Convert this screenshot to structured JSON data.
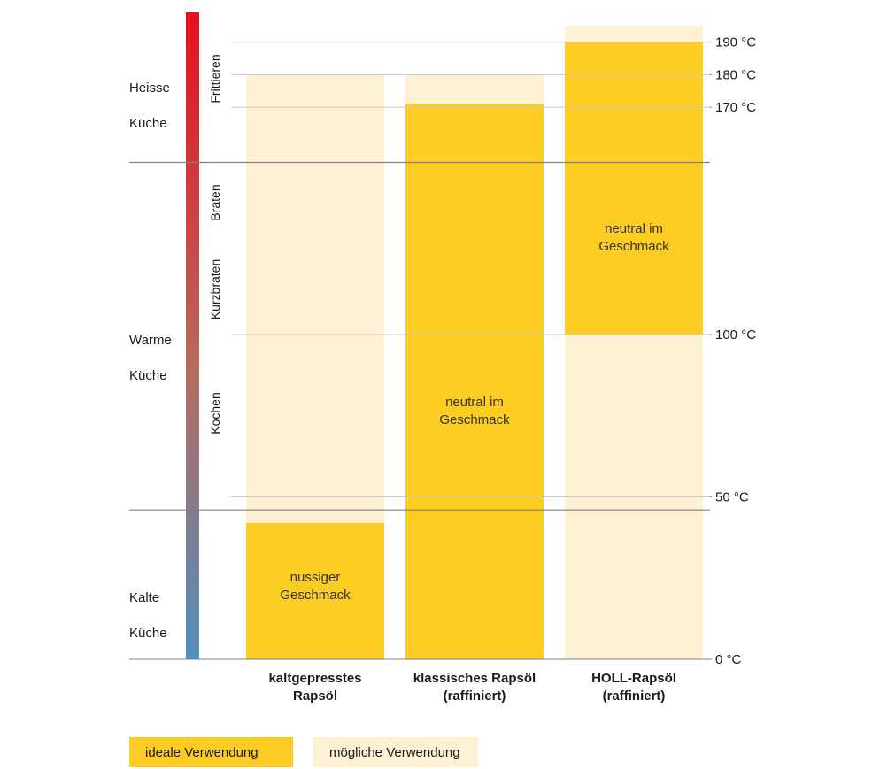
{
  "colors": {
    "ideal": "#fccc22",
    "possible": "#fef1d3",
    "gradient_top": "#e4101d",
    "gradient_bottom": "#4f8fbf",
    "grid": "#c8c8c8",
    "zone_divider": "#808080"
  },
  "zones": [
    {
      "lines": [
        "Heisse",
        "Küche"
      ]
    },
    {
      "lines": [
        "Warme",
        "Küche"
      ]
    },
    {
      "lines": [
        "Kalte",
        "Küche"
      ]
    }
  ],
  "methods": [
    "Frittieren",
    "Braten",
    "Kurzbraten",
    "Kochen"
  ],
  "chart_data": {
    "type": "bar",
    "y_unit": "°C",
    "ylim": [
      0,
      190
    ],
    "y_ticks": [
      {
        "value": 190,
        "label": "190 °C"
      },
      {
        "value": 180,
        "label": "180 °C"
      },
      {
        "value": 170,
        "label": "170 °C"
      },
      {
        "value": 100,
        "label": "100 °C"
      },
      {
        "value": 50,
        "label": "50 °C"
      },
      {
        "value": 0,
        "label": "0 °C"
      }
    ],
    "categories": [
      {
        "lines": [
          "kaltgepresstes",
          "Rapsöl"
        ]
      },
      {
        "lines": [
          "klassisches Rapsöl",
          "(raffiniert)"
        ]
      },
      {
        "lines": [
          "HOLL-Rapsöl",
          "(raffiniert)"
        ]
      }
    ],
    "series": [
      {
        "name": "ideale Verwendung",
        "ranges": [
          [
            0,
            42
          ],
          [
            0,
            171
          ],
          [
            100,
            190
          ]
        ]
      },
      {
        "name": "mögliche Verwendung",
        "ranges": [
          [
            0,
            180
          ],
          [
            0,
            180
          ],
          [
            0,
            195
          ]
        ]
      }
    ],
    "bar_notes": [
      [
        "nussiger",
        "Geschmack"
      ],
      [
        "neutral im",
        "Geschmack"
      ],
      [
        "neutral im",
        "Geschmack"
      ]
    ],
    "zone_boundaries": [
      46,
      153
    ]
  },
  "legend": [
    {
      "label": "ideale Verwendung"
    },
    {
      "label": "mögliche Verwendung"
    }
  ]
}
